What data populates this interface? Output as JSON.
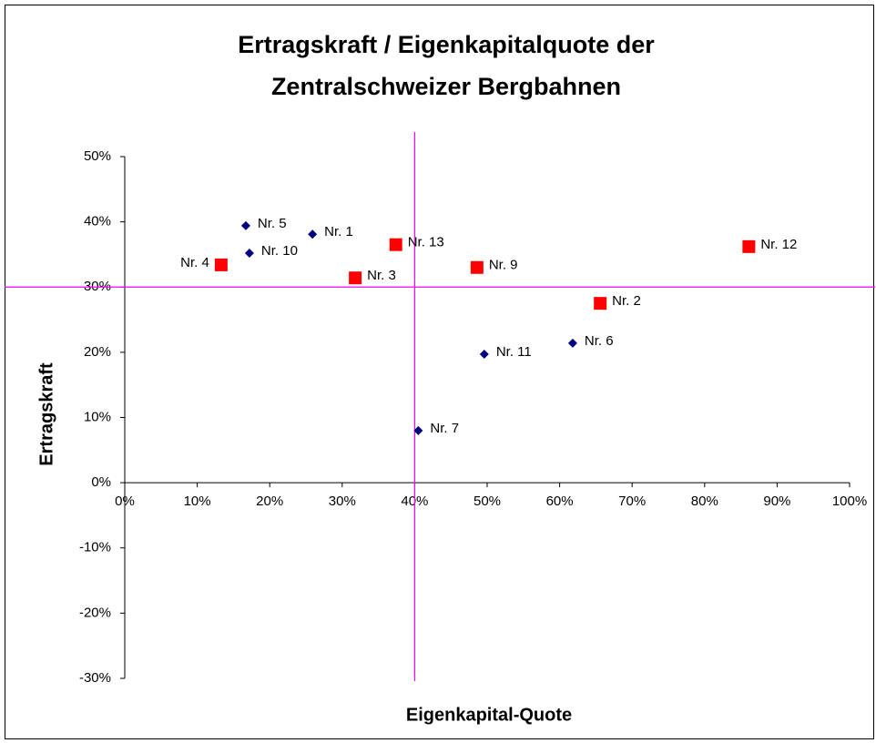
{
  "chart_data": {
    "type": "scatter",
    "title": [
      "Ertragskraft / Eigenkapitalquote der",
      "Zentralschweizer Bergbahnen"
    ],
    "xlabel": "Eigenkapital-Quote",
    "ylabel": "Ertragskraft",
    "xlim": [
      0,
      100
    ],
    "ylim": [
      -30,
      50
    ],
    "xticks": [
      {
        "value": 0,
        "label": "0%"
      },
      {
        "value": 10,
        "label": "10%"
      },
      {
        "value": 20,
        "label": "20%"
      },
      {
        "value": 30,
        "label": "30%"
      },
      {
        "value": 40,
        "label": "40%"
      },
      {
        "value": 50,
        "label": "50%"
      },
      {
        "value": 60,
        "label": "60%"
      },
      {
        "value": 70,
        "label": "70%"
      },
      {
        "value": 80,
        "label": "80%"
      },
      {
        "value": 90,
        "label": "90%"
      },
      {
        "value": 100,
        "label": "100%"
      }
    ],
    "yticks": [
      {
        "value": -30,
        "label": "-30%"
      },
      {
        "value": -20,
        "label": "-20%"
      },
      {
        "value": -10,
        "label": "-10%"
      },
      {
        "value": 0,
        "label": "0%"
      },
      {
        "value": 10,
        "label": "10%"
      },
      {
        "value": 20,
        "label": "20%"
      },
      {
        "value": 30,
        "label": "30%"
      },
      {
        "value": 40,
        "label": "40%"
      },
      {
        "value": 50,
        "label": "50%"
      }
    ],
    "reference_lines": {
      "x": 40,
      "y": 30,
      "color": "#ff00ff"
    },
    "series": [
      {
        "color": "#000080",
        "marker": "diamond",
        "x": [
          16.7,
          25.9,
          17.2,
          49.6,
          61.8,
          40.5
        ],
        "values": [
          39.4,
          38.1,
          35.2,
          19.7,
          21.4,
          8.0
        ],
        "point_labels": [
          "Nr. 5",
          "Nr. 1",
          "Nr. 10",
          "Nr. 11",
          "Nr. 6",
          "Nr. 7"
        ]
      },
      {
        "color": "#ff0000",
        "marker": "square",
        "x": [
          13.3,
          31.8,
          37.4,
          48.6,
          65.6,
          86.1
        ],
        "values": [
          33.4,
          31.4,
          36.5,
          33.0,
          27.5,
          36.2
        ],
        "point_labels": [
          "Nr. 4",
          "Nr. 3",
          "Nr. 13",
          "Nr. 9",
          "Nr. 2",
          "Nr. 12"
        ]
      }
    ]
  }
}
